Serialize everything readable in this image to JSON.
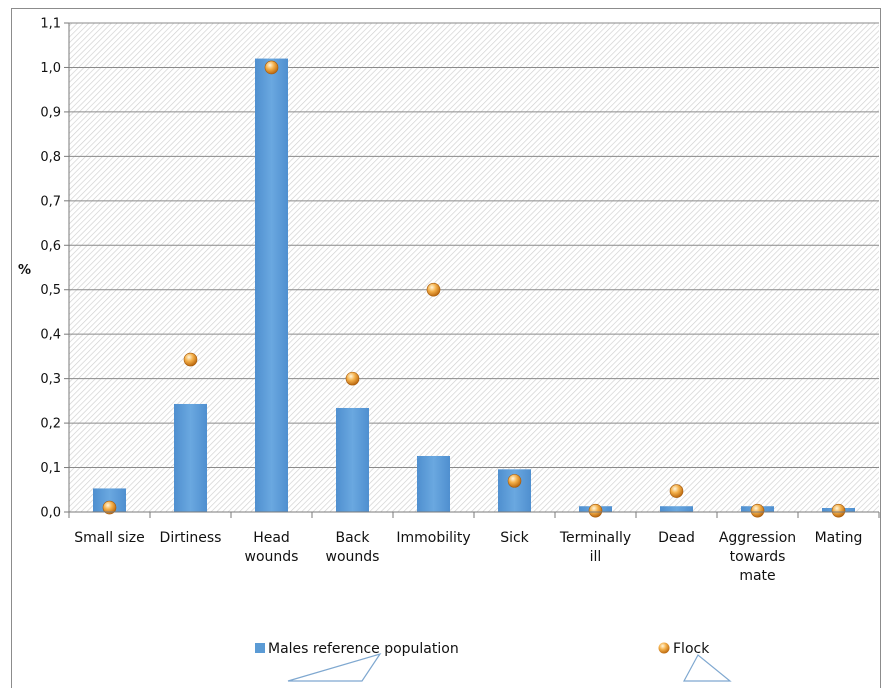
{
  "chart_data": {
    "type": "bar",
    "ylabel": "%",
    "ylim": [
      0,
      1.1
    ],
    "y_ticks": [
      "0,0",
      "0,1",
      "0,2",
      "0,3",
      "0,4",
      "0,5",
      "0,6",
      "0,7",
      "0,8",
      "0,9",
      "1,0",
      "1,1"
    ],
    "y_tick_values": [
      0,
      0.1,
      0.2,
      0.3,
      0.4,
      0.5,
      0.6,
      0.7,
      0.8,
      0.9,
      1.0,
      1.1
    ],
    "categories": [
      [
        "Small size"
      ],
      [
        "Dirtiness"
      ],
      [
        "Head",
        "wounds"
      ],
      [
        "Back",
        "wounds"
      ],
      [
        "Immobility"
      ],
      [
        "Sick"
      ],
      [
        "Terminally",
        "ill"
      ],
      [
        "Dead"
      ],
      [
        "Aggression",
        "towards",
        "mate"
      ],
      [
        "Mating"
      ]
    ],
    "series": [
      {
        "name": "Males reference population",
        "kind": "bar",
        "color": "#5b9bd5",
        "values": [
          0.053,
          0.243,
          1.02,
          0.234,
          0.126,
          0.096,
          0.013,
          0.013,
          0.013,
          0.009
        ]
      },
      {
        "name": "Flock",
        "kind": "marker",
        "color": "#f0a030",
        "values": [
          0.01,
          0.343,
          1.0,
          0.3,
          0.5,
          0.07,
          0.003,
          0.047,
          0.003,
          0.003
        ]
      }
    ],
    "grid": true,
    "legend_position": "bottom"
  }
}
